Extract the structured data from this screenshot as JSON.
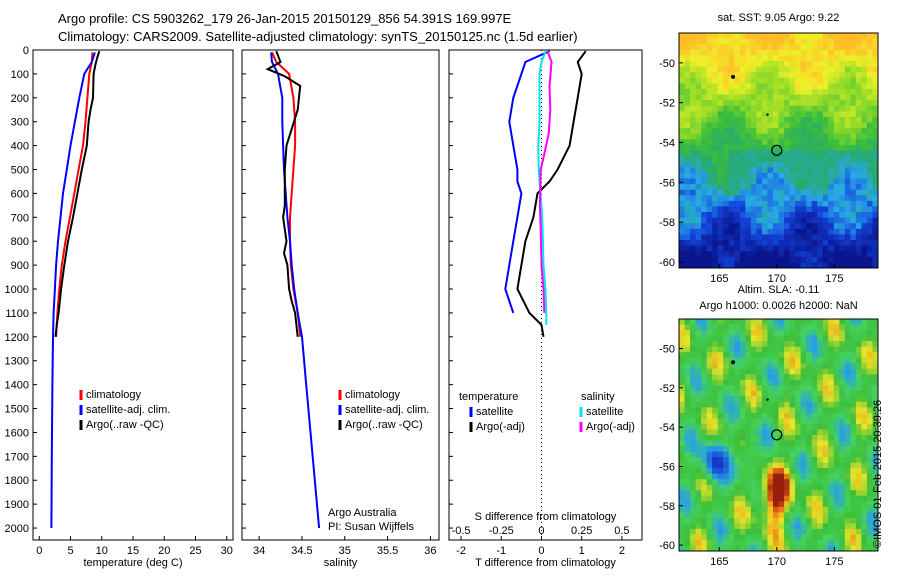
{
  "titles": {
    "line1": "Argo profile: CS 5903262_179 26-Jan-2015 20150129_856 54.391S 169.997E",
    "line2": "Climatology: CARS2009. Satellite-adjusted climatology: synTS_20150125.nc (1.5d earlier)"
  },
  "credit": "©IMOS 01-Feb-2015 20:39:26",
  "colors": {
    "climatology": "#ff0000",
    "satellite": "#0000ff",
    "argo": "#000000",
    "sal_satellite": "#00e5ee",
    "sal_argo": "#ff00ff"
  },
  "chart_data": [
    {
      "type": "line",
      "id": "temperature",
      "xlabel": "temperature (deg C)",
      "ylabel": "",
      "xlim": [
        -1,
        31
      ],
      "ylim": [
        2050,
        0
      ],
      "xticks": [
        0,
        5,
        10,
        15,
        20,
        25,
        30
      ],
      "yticks": [
        0,
        100,
        200,
        300,
        400,
        500,
        600,
        700,
        800,
        900,
        1000,
        1100,
        1200,
        1300,
        1400,
        1500,
        1600,
        1700,
        1800,
        1900,
        2000
      ],
      "legend": [
        "climatology",
        "satellite-adj. clim.",
        "Argo(..raw -QC)"
      ],
      "series": [
        {
          "name": "climatology",
          "color": "#ff0000",
          "x": [
            8.5,
            8.4,
            8.0,
            7.7,
            7.4,
            7.0,
            6.3,
            5.6,
            4.9,
            4.2,
            3.6,
            3.2,
            2.9,
            2.7
          ],
          "y": [
            10,
            50,
            100,
            200,
            300,
            400,
            500,
            600,
            700,
            800,
            900,
            1000,
            1100,
            1200
          ]
        },
        {
          "name": "satellite-adj. clim.",
          "color": "#0000ff",
          "x": [
            8.9,
            8.4,
            7.2,
            6.4,
            5.7,
            5.0,
            4.4,
            3.8,
            3.4,
            3.0,
            2.7,
            2.5,
            2.3,
            2.2,
            2.1,
            2.0,
            1.95
          ],
          "y": [
            10,
            50,
            100,
            200,
            300,
            400,
            500,
            600,
            700,
            800,
            900,
            1000,
            1100,
            1200,
            1400,
            1700,
            2000
          ]
        },
        {
          "name": "Argo(..raw -QC)",
          "color": "#000000",
          "x": [
            9.6,
            9.3,
            9.0,
            8.7,
            8.6,
            8.2,
            7.9,
            7.6,
            7.2,
            6.8,
            6.1,
            5.4,
            4.6,
            4.0,
            3.5,
            3.1,
            2.8,
            2.6
          ],
          "y": [
            5,
            30,
            60,
            100,
            200,
            250,
            300,
            400,
            450,
            500,
            600,
            700,
            800,
            900,
            1000,
            1100,
            1150,
            1200
          ]
        }
      ]
    },
    {
      "type": "line",
      "id": "salinity",
      "xlabel": "salinity",
      "ylabel": "",
      "xlim": [
        33.8,
        36.1
      ],
      "ylim": [
        2050,
        0
      ],
      "xticks": [
        34,
        34.5,
        35,
        35.5,
        36
      ],
      "legend": [
        "climatology",
        "satellite-adj. clim.",
        "Argo(..raw -QC)"
      ],
      "annotation": [
        "Argo Australia",
        "PI: Susan Wijffels"
      ],
      "series": [
        {
          "name": "climatology",
          "color": "#ff0000",
          "x": [
            34.15,
            34.2,
            34.35,
            34.4,
            34.42,
            34.42,
            34.4,
            34.38,
            34.36,
            34.36,
            34.37,
            34.4,
            34.45,
            34.48
          ],
          "y": [
            10,
            50,
            100,
            200,
            300,
            400,
            500,
            600,
            700,
            800,
            900,
            1000,
            1100,
            1200
          ]
        },
        {
          "name": "satellite-adj. clim.",
          "color": "#0000ff",
          "x": [
            34.14,
            34.15,
            34.22,
            34.27,
            34.27,
            34.28,
            34.29,
            34.31,
            34.33,
            34.36,
            34.38,
            34.41,
            34.45,
            34.5,
            34.55,
            34.6,
            34.65,
            34.7
          ],
          "y": [
            10,
            50,
            100,
            200,
            300,
            400,
            500,
            600,
            700,
            800,
            900,
            1000,
            1100,
            1200,
            1400,
            1600,
            1800,
            2000
          ]
        },
        {
          "name": "Argo(..raw -QC)",
          "color": "#000000",
          "x": [
            34.2,
            34.25,
            34.1,
            34.3,
            34.48,
            34.45,
            34.32,
            34.3,
            34.3,
            34.28,
            34.32,
            34.29,
            34.33,
            34.35,
            34.38,
            34.42,
            34.45
          ],
          "y": [
            5,
            50,
            80,
            110,
            150,
            250,
            400,
            500,
            650,
            700,
            800,
            850,
            900,
            1000,
            1050,
            1100,
            1200
          ]
        }
      ]
    },
    {
      "type": "line",
      "id": "difference",
      "xlabel": "T difference from climatology",
      "xlabel_top": "S difference from climatology",
      "xlim": [
        -2.3,
        2.5
      ],
      "ylim": [
        2050,
        0
      ],
      "xticks": [
        -2,
        -1,
        0,
        1,
        2
      ],
      "xtick_labels": [
        "-2",
        "-1",
        "0",
        "1",
        "2"
      ],
      "xticks_top": [
        -0.5,
        -0.25,
        0,
        0.25,
        0.5
      ],
      "xtick_labels_top": [
        "-0.5",
        "-0.25",
        "0",
        "0.25",
        "0.5"
      ],
      "legend_headers": [
        "temperature",
        "salinity"
      ],
      "legend": [
        "satellite",
        "Argo(-adj)",
        "satellite",
        "Argo(-adj)"
      ],
      "series": [
        {
          "name": "satellite",
          "group": "temperature",
          "color": "#0000ff",
          "x": [
            0.2,
            -0.4,
            -0.5,
            -0.7,
            -0.8,
            -0.7,
            -0.6,
            -0.6,
            -0.5,
            -0.6,
            -0.7,
            -0.8,
            -0.9,
            -0.8,
            -0.7
          ],
          "y": [
            5,
            50,
            100,
            200,
            300,
            400,
            500,
            550,
            600,
            700,
            800,
            900,
            1000,
            1050,
            1100
          ]
        },
        {
          "name": "Argo(-adj)",
          "group": "temperature",
          "color": "#000000",
          "x": [
            1.1,
            0.9,
            1.0,
            0.9,
            0.8,
            0.7,
            0.4,
            0.2,
            -0.1,
            -0.2,
            -0.4,
            -0.5,
            -0.6,
            -0.3,
            0.0,
            0.05
          ],
          "y": [
            5,
            50,
            100,
            200,
            300,
            400,
            500,
            550,
            600,
            700,
            800,
            900,
            1000,
            1100,
            1150,
            1200
          ]
        },
        {
          "name": "satellite",
          "group": "salinity",
          "color": "#00e5ee",
          "x": [
            0.1,
            0.0,
            -0.05,
            -0.05,
            -0.05,
            -0.08,
            -0.07,
            0.02,
            0.05,
            0.1,
            0.12,
            0.12
          ],
          "y": [
            5,
            50,
            100,
            200,
            300,
            400,
            500,
            700,
            900,
            1000,
            1100,
            1150
          ]
        },
        {
          "name": "Argo(-adj)",
          "group": "salinity",
          "color": "#ff00ff",
          "x": [
            0.15,
            0.25,
            0.2,
            0.22,
            0.18,
            0.05,
            -0.02,
            -0.04,
            -0.02,
            0.0,
            0.05,
            0.07
          ],
          "y": [
            5,
            50,
            150,
            250,
            350,
            450,
            500,
            650,
            750,
            900,
            1000,
            1100
          ]
        }
      ]
    },
    {
      "type": "heatmap",
      "id": "sst-map",
      "title": "sat. SST: 9.05 Argo: 9.22",
      "xlim": [
        161.5,
        178.8
      ],
      "ylim": [
        -60.3,
        -48.5
      ],
      "xticks": [
        165,
        170,
        175
      ],
      "yticks": [
        -50,
        -52,
        -54,
        -56,
        -58,
        -60
      ],
      "argo_position": {
        "lon": 169.997,
        "lat": -54.391
      }
    },
    {
      "type": "heatmap",
      "id": "sla-map",
      "title": "Altim. SLA: -0.11",
      "subtitle": "Argo h1000: 0.0026 h2000: NaN",
      "xlim": [
        161.5,
        178.8
      ],
      "ylim": [
        -60.3,
        -48.5
      ],
      "xticks": [
        165,
        170,
        175
      ],
      "yticks": [
        -50,
        -52,
        -54,
        -56,
        -58,
        -60
      ],
      "argo_position": {
        "lon": 169.997,
        "lat": -54.391
      }
    }
  ]
}
